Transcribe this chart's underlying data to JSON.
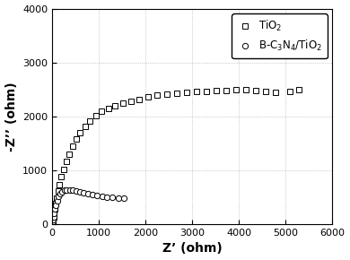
{
  "title": "",
  "xlabel": "Z’ (ohm)",
  "ylabel": "-Z’’ (ohm)",
  "xlim": [
    0,
    6000
  ],
  "ylim": [
    0,
    4000
  ],
  "xticks": [
    0,
    1000,
    2000,
    3000,
    4000,
    5000,
    6000
  ],
  "yticks": [
    0,
    1000,
    2000,
    3000,
    4000
  ],
  "tio2_x": [
    8,
    15,
    22,
    32,
    44,
    58,
    76,
    98,
    125,
    158,
    198,
    245,
    300,
    362,
    432,
    512,
    602,
    702,
    812,
    932,
    1062,
    1202,
    1352,
    1512,
    1682,
    1862,
    2052,
    2252,
    2462,
    2672,
    2882,
    3092,
    3302,
    3512,
    3722,
    3932,
    4142,
    4352,
    4562,
    4772,
    5082,
    5282
  ],
  "tio2_y": [
    20,
    50,
    90,
    140,
    210,
    290,
    385,
    490,
    610,
    740,
    880,
    1020,
    1160,
    1300,
    1440,
    1580,
    1700,
    1820,
    1920,
    2010,
    2090,
    2150,
    2200,
    2240,
    2280,
    2320,
    2360,
    2390,
    2410,
    2430,
    2450,
    2460,
    2470,
    2475,
    2480,
    2490,
    2490,
    2480,
    2470,
    2440,
    2470,
    2490
  ],
  "bc3n4_x": [
    8,
    15,
    22,
    32,
    44,
    60,
    80,
    105,
    135,
    170,
    210,
    258,
    312,
    373,
    440,
    513,
    593,
    678,
    768,
    863,
    963,
    1068,
    1178,
    1293,
    1413,
    1538
  ],
  "bc3n4_y": [
    20,
    48,
    88,
    138,
    200,
    275,
    355,
    435,
    508,
    565,
    605,
    628,
    638,
    638,
    628,
    612,
    595,
    578,
    560,
    545,
    530,
    517,
    505,
    493,
    483,
    475
  ],
  "legend_tio2": "TiO$_2$",
  "legend_bc3n4": "B-C$_3$N$_4$/TiO$_2$",
  "marker_tio2": "s",
  "marker_bc3n4": "o",
  "marker_size": 4.5,
  "marker_color": "black",
  "marker_facecolor": "white",
  "background_color": "#ffffff",
  "grid": true
}
